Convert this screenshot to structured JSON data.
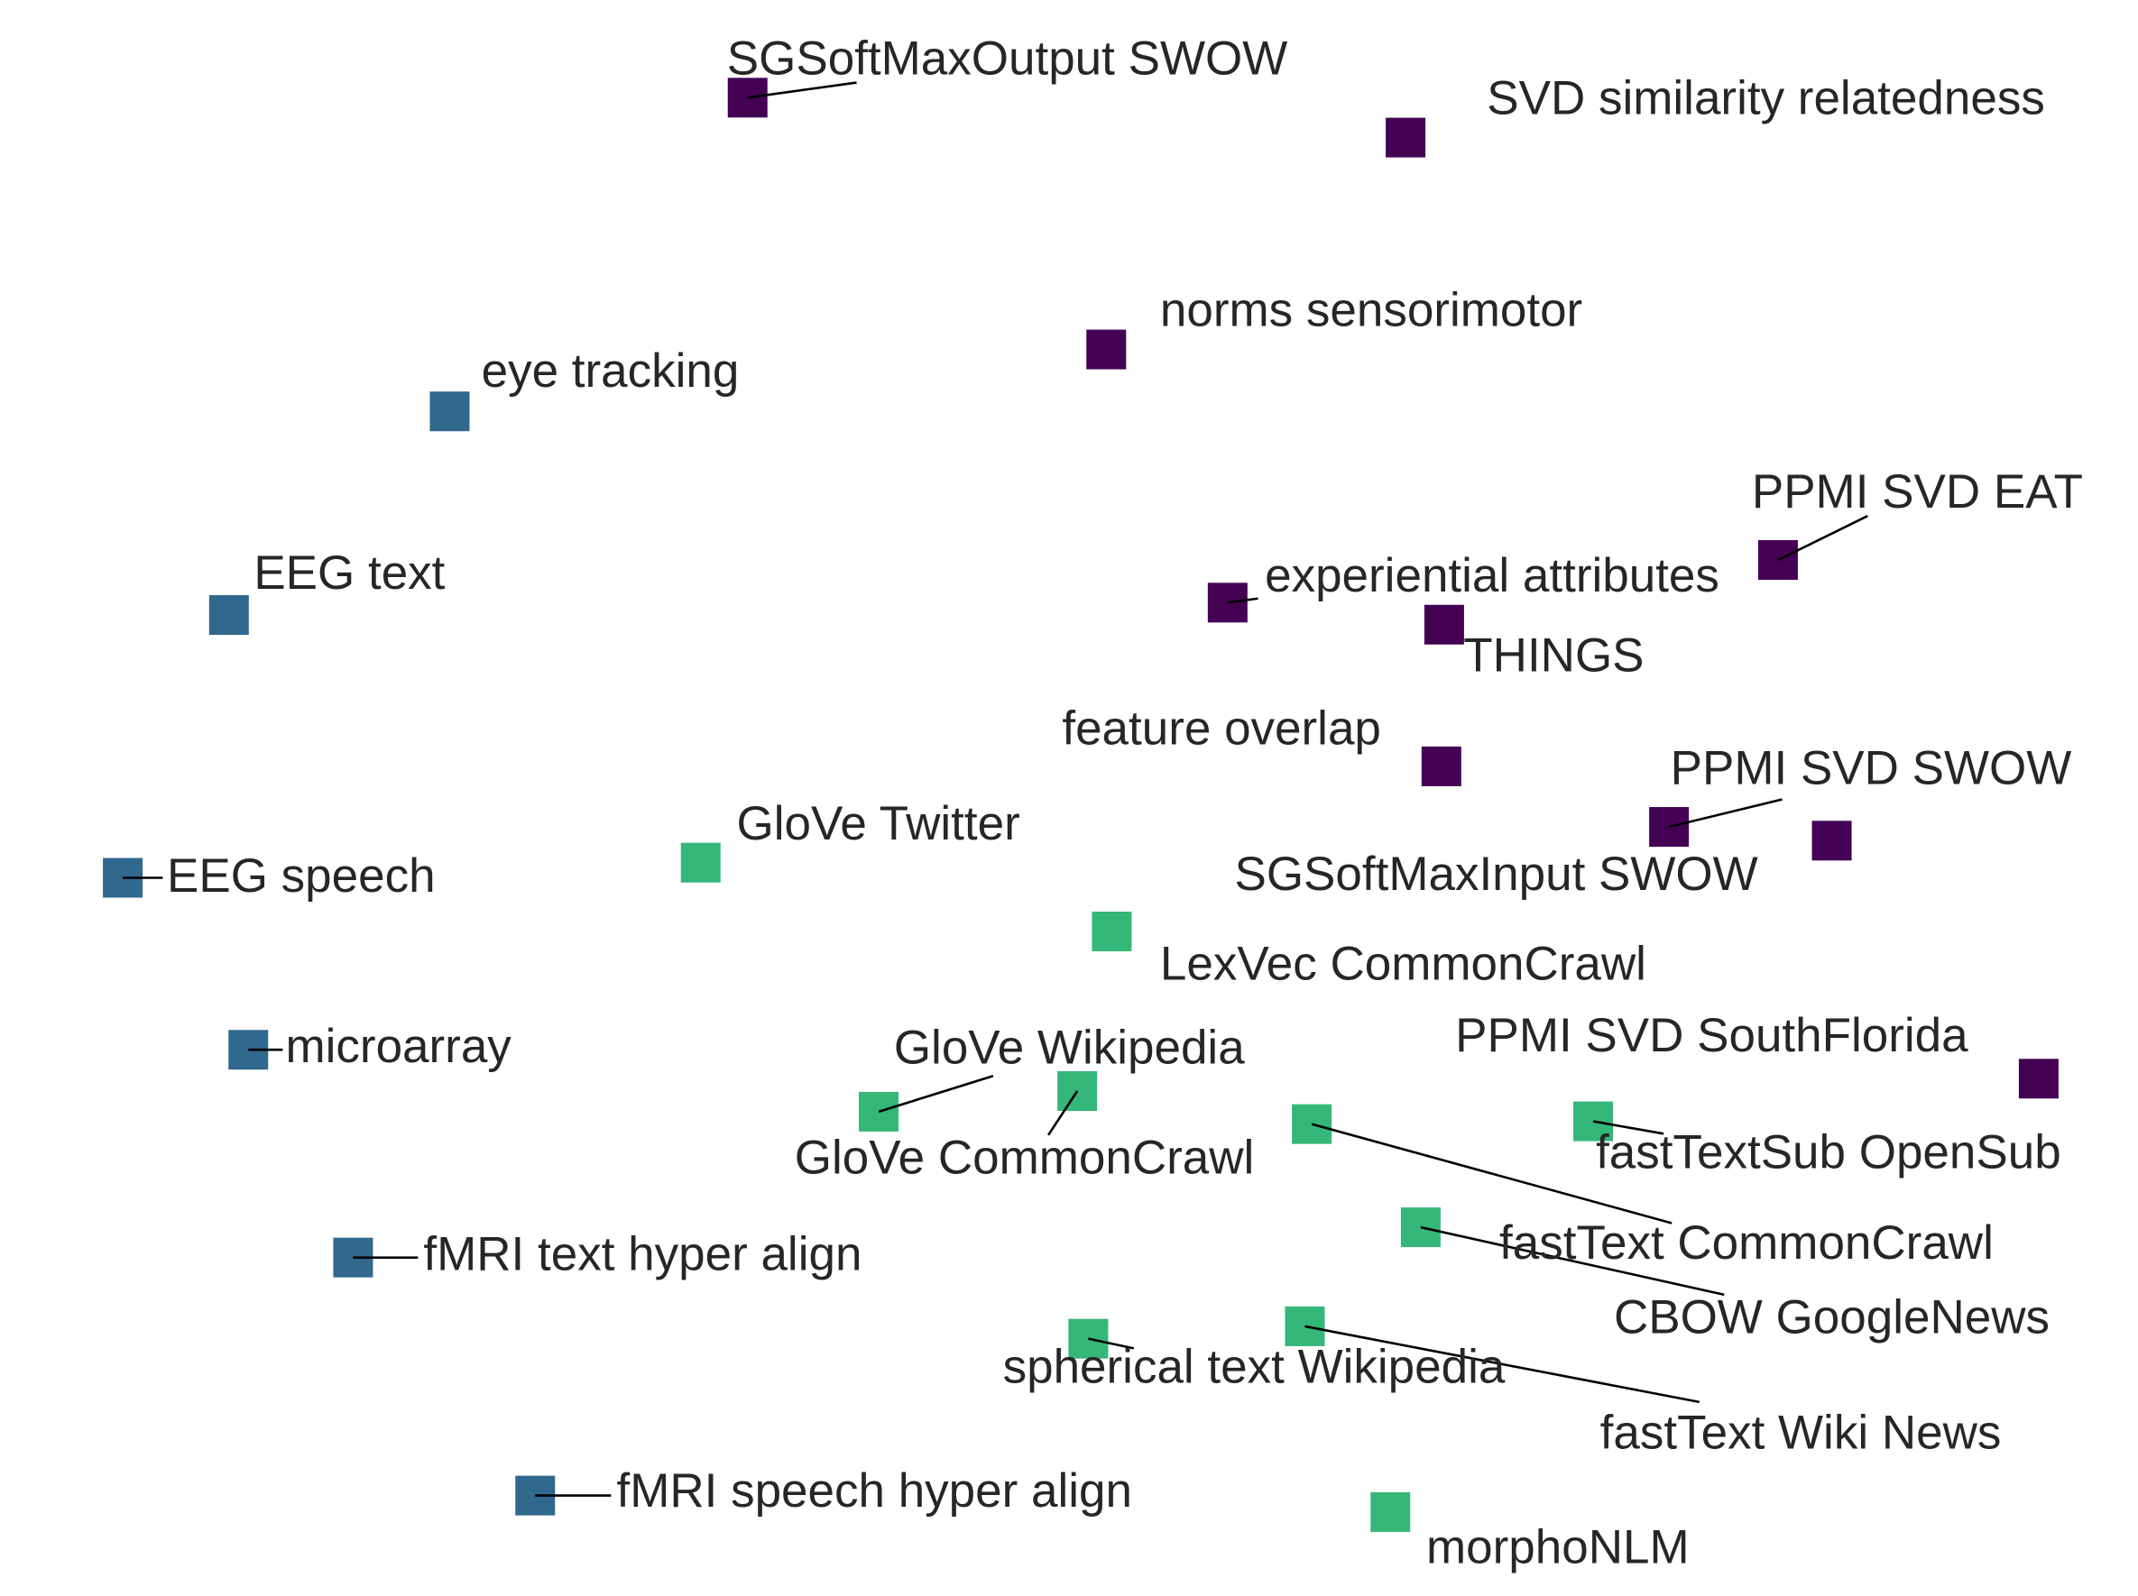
{
  "chart_data": {
    "type": "scatter",
    "title": "",
    "xlabel": "",
    "ylabel": "",
    "xlim": [
      0,
      1550
    ],
    "ylim": [
      0,
      1160
    ],
    "grid": false,
    "legend": "none",
    "marker": "square",
    "groups": {
      "behavioral": {
        "color": "#440154"
      },
      "brain": {
        "color": "#31688E"
      },
      "text": {
        "color": "#35B779"
      }
    },
    "points": [
      {
        "label": "SGSoftMaxOutput SWOW",
        "group": "behavioral",
        "x": 542,
        "y": 1089
      },
      {
        "label": "SVD similarity relatedness",
        "group": "behavioral",
        "x": 1019,
        "y": 1060
      },
      {
        "label": "norms sensorimotor",
        "group": "behavioral",
        "x": 802,
        "y": 906
      },
      {
        "label": "PPMI SVD EAT",
        "group": "behavioral",
        "x": 1289,
        "y": 753
      },
      {
        "label": "experiential attributes",
        "group": "behavioral",
        "x": 890,
        "y": 722
      },
      {
        "label": "THINGS",
        "group": "behavioral",
        "x": 1047,
        "y": 706
      },
      {
        "label": "feature overlap",
        "group": "behavioral",
        "x": 1045,
        "y": 603
      },
      {
        "label": "PPMI SVD SWOW",
        "group": "behavioral",
        "x": 1210,
        "y": 559
      },
      {
        "label": "SGSoftMaxInput SWOW",
        "group": "behavioral",
        "x": 1328,
        "y": 549
      },
      {
        "label": "PPMI SVD SouthFlorida",
        "group": "behavioral",
        "x": 1478,
        "y": 376
      },
      {
        "label": "eye tracking",
        "group": "brain",
        "x": 326,
        "y": 861
      },
      {
        "label": "EEG text",
        "group": "brain",
        "x": 166,
        "y": 713
      },
      {
        "label": "EEG speech",
        "group": "brain",
        "x": 89,
        "y": 522
      },
      {
        "label": "microarray",
        "group": "brain",
        "x": 180,
        "y": 397
      },
      {
        "label": "fMRI text hyper align",
        "group": "brain",
        "x": 256,
        "y": 246
      },
      {
        "label": "fMRI speech hyper align",
        "group": "brain",
        "x": 388,
        "y": 73
      },
      {
        "label": "GloVe Twitter",
        "group": "text",
        "x": 508,
        "y": 533
      },
      {
        "label": "LexVec CommonCrawl",
        "group": "text",
        "x": 806,
        "y": 483
      },
      {
        "label": "GloVe Wikipedia",
        "group": "text",
        "x": 637,
        "y": 352
      },
      {
        "label": "GloVe CommonCrawl",
        "group": "text",
        "x": 781,
        "y": 367
      },
      {
        "label": "fastText CommonCrawl",
        "group": "text",
        "x": 951,
        "y": 343
      },
      {
        "label": "fastTextSub OpenSub",
        "group": "text",
        "x": 1155,
        "y": 345
      },
      {
        "label": "CBOW GoogleNews",
        "group": "text",
        "x": 1030,
        "y": 268
      },
      {
        "label": "spherical text Wikipedia",
        "group": "text",
        "x": 789,
        "y": 187
      },
      {
        "label": "fastText Wiki News",
        "group": "text",
        "x": 946,
        "y": 196
      },
      {
        "label": "morphoNLM",
        "group": "text",
        "x": 1008,
        "y": 61
      }
    ]
  }
}
